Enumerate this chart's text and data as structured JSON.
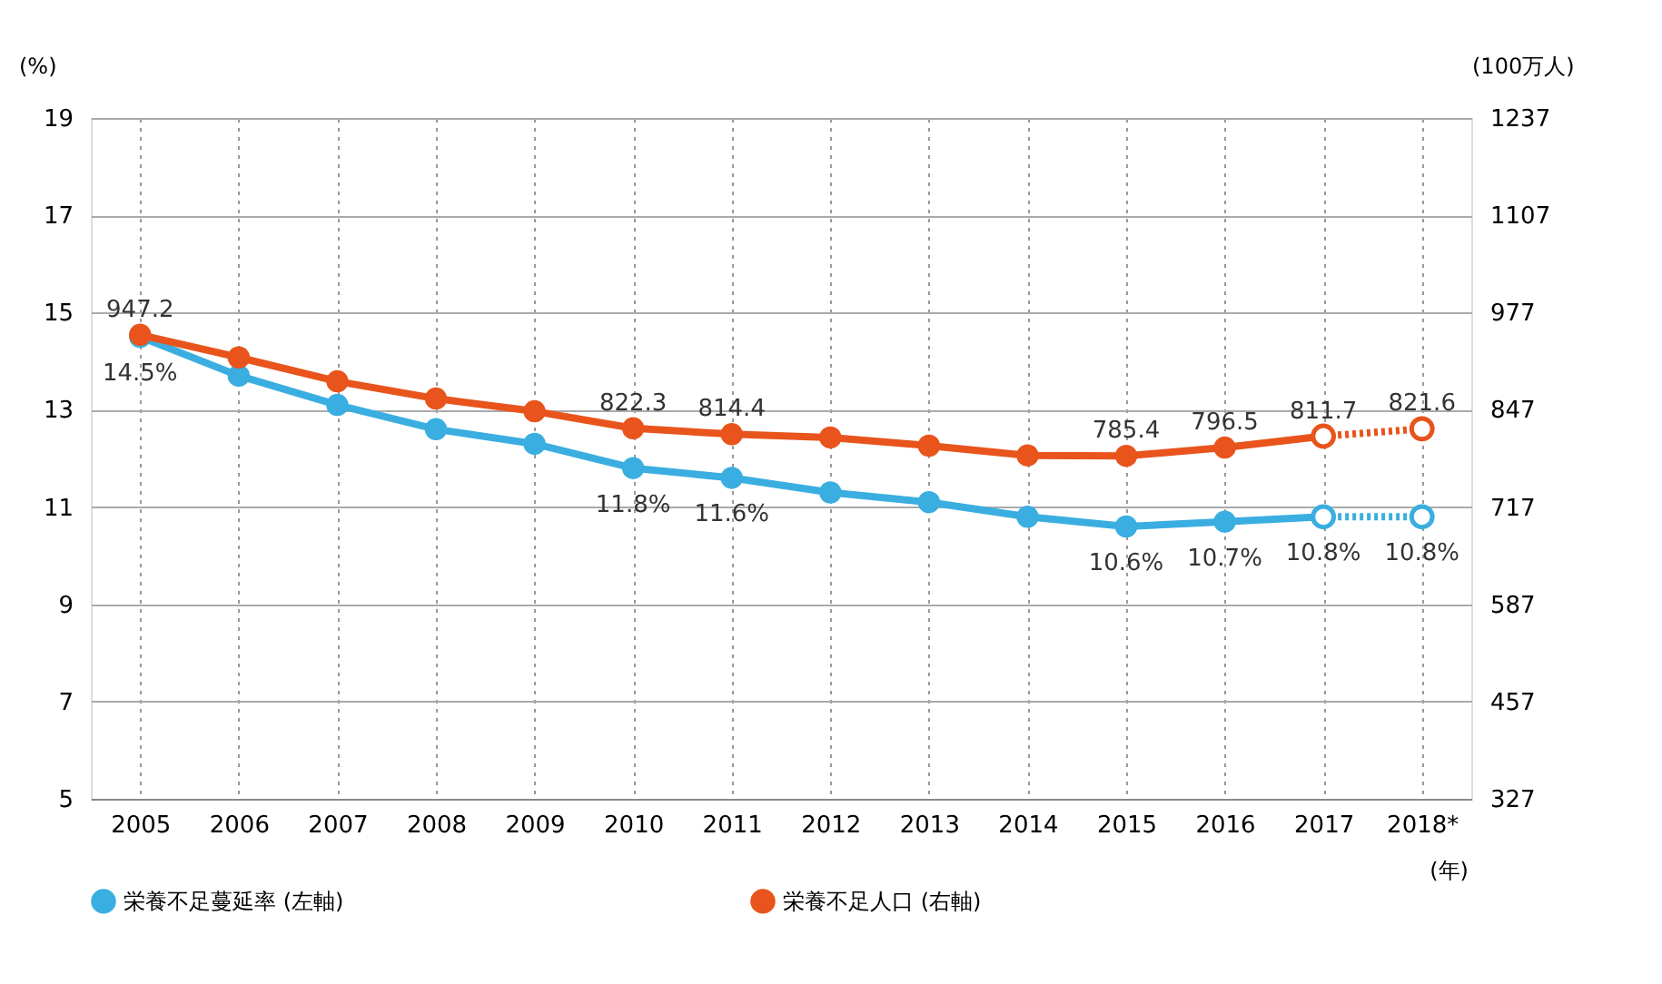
{
  "chart_data": {
    "type": "line",
    "xlabel": "(年)",
    "ylabel": "(%)",
    "y2label": "(100万人)",
    "categories": [
      "2005",
      "2006",
      "2007",
      "2008",
      "2009",
      "2010",
      "2011",
      "2012",
      "2013",
      "2014",
      "2015",
      "2016",
      "2017",
      "2018*"
    ],
    "ylim": [
      5,
      19
    ],
    "yticks": [
      5,
      7,
      9,
      11,
      13,
      15,
      17,
      19
    ],
    "y2lim": [
      327,
      1237
    ],
    "y2ticks": [
      327,
      457,
      587,
      717,
      847,
      977,
      1107,
      1237
    ],
    "grid": true,
    "legend": "bottom",
    "marker": "circle",
    "series": [
      {
        "name": "栄養不足蔓延率 (左軸)",
        "color": "#3aaee0",
        "axis": "y",
        "line_style": "solid",
        "values": [
          14.5,
          13.7,
          13.1,
          12.6,
          12.3,
          11.8,
          11.6,
          11.3,
          11.1,
          10.8,
          10.6,
          10.7,
          10.8,
          null
        ],
        "value_labels": [
          "14.5%",
          null,
          null,
          null,
          null,
          "11.8%",
          "11.6%",
          null,
          null,
          null,
          "10.6%",
          "10.7%",
          "10.8%",
          null
        ]
      },
      {
        "color": "#3aaee0",
        "axis": "y",
        "line_style": "dotted",
        "values": [
          null,
          null,
          null,
          null,
          null,
          null,
          null,
          null,
          null,
          null,
          null,
          null,
          10.8,
          10.8
        ],
        "value_labels": [
          null,
          null,
          null,
          null,
          null,
          null,
          null,
          null,
          null,
          null,
          null,
          null,
          null,
          "10.8%"
        ]
      },
      {
        "name": "栄養不足人口 (右軸)",
        "color": "#e8541c",
        "axis": "y2",
        "line_style": "solid",
        "values": [
          947.2,
          917,
          885,
          862,
          845,
          822.3,
          814.4,
          810,
          799,
          786,
          785.4,
          796.5,
          811.7,
          null
        ],
        "value_labels": [
          "947.2",
          null,
          null,
          null,
          null,
          "822.3",
          "814.4",
          null,
          null,
          null,
          "785.4",
          "796.5",
          "811.7",
          null
        ]
      },
      {
        "color": "#e8541c",
        "axis": "y2",
        "line_style": "dotted",
        "values": [
          null,
          null,
          null,
          null,
          null,
          null,
          null,
          null,
          null,
          null,
          null,
          null,
          811.7,
          821.6
        ],
        "value_labels": [
          null,
          null,
          null,
          null,
          null,
          null,
          null,
          null,
          null,
          null,
          null,
          null,
          null,
          "821.6"
        ]
      }
    ]
  }
}
